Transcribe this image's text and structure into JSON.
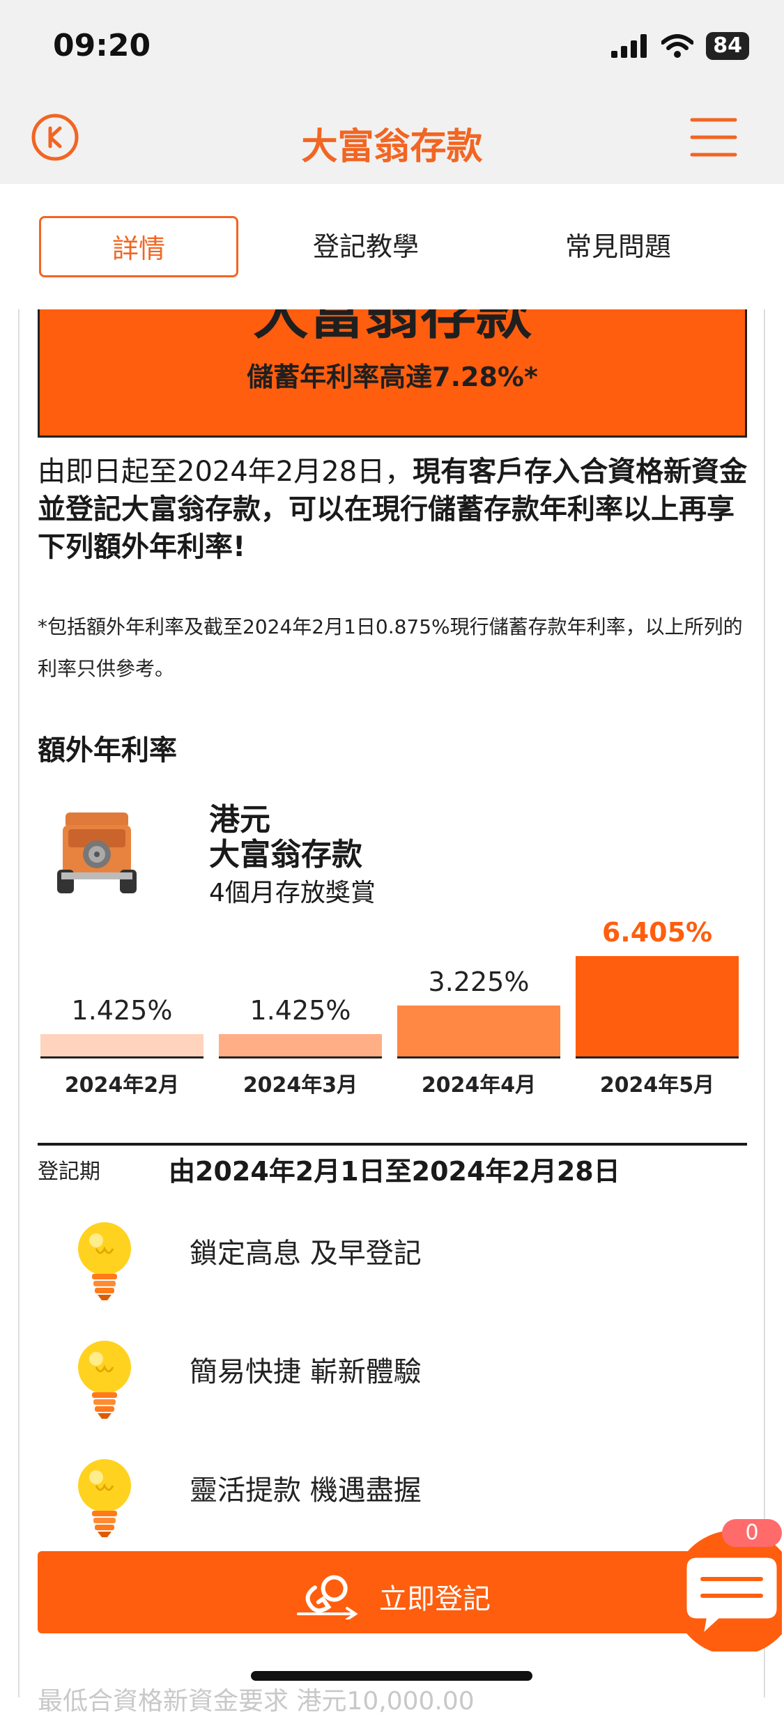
{
  "status": {
    "time": "09:20",
    "battery": "84"
  },
  "header": {
    "title": "大富翁存款"
  },
  "tabs": [
    {
      "label": "詳情"
    },
    {
      "label": "登記教學"
    },
    {
      "label": "常見問題"
    }
  ],
  "banner": {
    "title": "大富翁存款",
    "subtitle": "儲蓄年利率高達7.28%*"
  },
  "intro": {
    "plain": "由即日起至2024年2月28日，",
    "bold": "現有客戶存入合資格新資金並登記大富翁存款，可以在現行儲蓄存款年利率以上再享下列額外年利率!"
  },
  "footnote": "*包括額外年利率及截至2024年2月1日0.875%現行儲蓄存款年利率，以上所列的利率只供參考。",
  "section_title": "額外年利率",
  "product": {
    "name_line1": "港元",
    "name_line2": "大富翁存款",
    "subtitle": "4個月存放獎賞"
  },
  "chart_data": {
    "type": "bar",
    "categories": [
      "2024年2月",
      "2024年3月",
      "2024年4月",
      "2024年5月"
    ],
    "value_labels": [
      "1.425%",
      "1.425%",
      "3.225%",
      "6.405%"
    ],
    "values": [
      1.425,
      1.425,
      3.225,
      6.405
    ],
    "colors": [
      "#ffd3bd",
      "#ffae85",
      "#ff8845",
      "#ff5e0e"
    ],
    "highlight_color": "#ff5e0e"
  },
  "registration": {
    "label": "登記期",
    "value": "由2024年2月1日至2024年2月28日"
  },
  "features": [
    {
      "icon": "lightbulb-icon",
      "text": "鎖定高息 及早登記"
    },
    {
      "icon": "lightbulb-icon",
      "text": "簡易快捷 嶄新體驗"
    },
    {
      "icon": "lightbulb-icon",
      "text": "靈活提款 機遇盡握"
    }
  ],
  "cta": {
    "label": "立即登記"
  },
  "chat": {
    "badge": "0"
  },
  "faded": {
    "text": "最低合資格新資金要求    港元10,000.00"
  },
  "colors": {
    "accent": "#f26522",
    "banner": "#ff5e0e"
  }
}
